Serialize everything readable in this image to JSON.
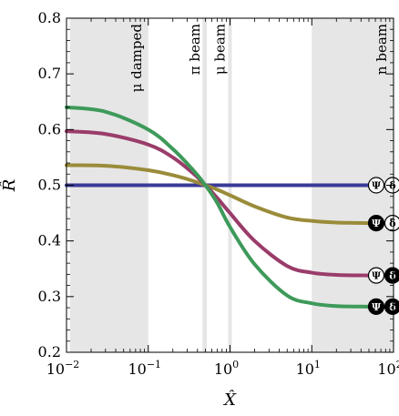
{
  "chart_data": {
    "type": "line",
    "xlabel": "X̂",
    "ylabel": "R̂",
    "x_scale": "log",
    "xlim": [
      0.01,
      100
    ],
    "ylim": [
      0.2,
      0.8
    ],
    "grid": false,
    "x_ticks": [
      {
        "value": 0.01,
        "base": "10",
        "exp": "−2"
      },
      {
        "value": 0.1,
        "base": "10",
        "exp": "−1"
      },
      {
        "value": 1,
        "base": "10",
        "exp": "0"
      },
      {
        "value": 10,
        "base": "10",
        "exp": "1"
      },
      {
        "value": 100,
        "base": "10",
        "exp": "2"
      }
    ],
    "y_ticks": [
      "0.2",
      "0.3",
      "0.4",
      "0.5",
      "0.6",
      "0.7",
      "0.8"
    ],
    "regions": [
      {
        "label": "μ damped",
        "x0": 0.011,
        "x1": 0.1
      },
      {
        "label": "π beam",
        "x0": 0.46,
        "x1": 0.52
      },
      {
        "label": "μ beam",
        "x0": 0.95,
        "x1": 1.05
      },
      {
        "label": "n beam",
        "x0": 10,
        "x1": 100
      }
    ],
    "series": [
      {
        "color": "#3a3a98",
        "x": [
          0.01,
          0.1,
          0.5,
          1,
          10,
          50
        ],
        "y": [
          0.5,
          0.5,
          0.5,
          0.5,
          0.5,
          0.5
        ],
        "badge": {
          "psi_filled": false,
          "delta_filled": false,
          "psi": "Ψ",
          "delta": "δ"
        }
      },
      {
        "color": "#9a8c3a",
        "x": [
          0.01,
          0.03,
          0.1,
          0.2,
          0.35,
          0.5,
          0.7,
          1,
          2,
          5,
          10,
          20,
          50
        ],
        "y": [
          0.536,
          0.535,
          0.527,
          0.518,
          0.508,
          0.5,
          0.492,
          0.482,
          0.462,
          0.442,
          0.436,
          0.433,
          0.432
        ],
        "badge": {
          "psi_filled": true,
          "delta_filled": false,
          "psi": "Ψ",
          "delta": "δ"
        }
      },
      {
        "color": "#9a3c6a",
        "x": [
          0.01,
          0.03,
          0.1,
          0.2,
          0.35,
          0.5,
          0.7,
          1,
          2,
          5,
          10,
          20,
          50
        ],
        "y": [
          0.597,
          0.592,
          0.573,
          0.55,
          0.522,
          0.5,
          0.477,
          0.45,
          0.4,
          0.355,
          0.343,
          0.339,
          0.338
        ],
        "badge": {
          "psi_filled": false,
          "delta_filled": true,
          "psi": "Ψ",
          "delta": "δ"
        }
      },
      {
        "color": "#3e9a5a",
        "x": [
          0.01,
          0.03,
          0.1,
          0.2,
          0.35,
          0.5,
          0.7,
          1,
          2,
          5,
          10,
          20,
          50
        ],
        "y": [
          0.64,
          0.632,
          0.6,
          0.565,
          0.528,
          0.5,
          0.468,
          0.425,
          0.358,
          0.302,
          0.288,
          0.283,
          0.282
        ],
        "badge": {
          "psi_filled": true,
          "delta_filled": true,
          "psi": "Ψ",
          "delta": "δ"
        }
      }
    ]
  }
}
